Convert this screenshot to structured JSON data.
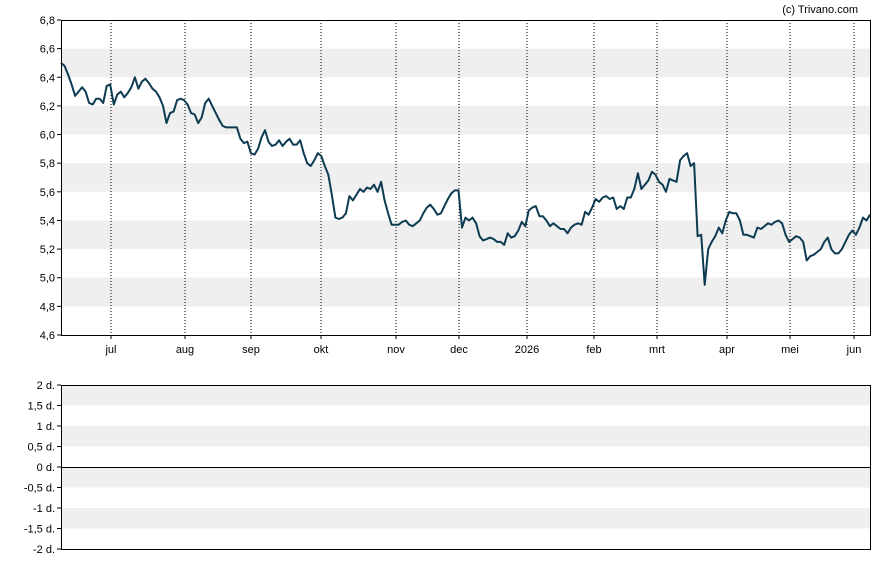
{
  "watermark": "(c) Trivano.com",
  "colors": {
    "line": "#0d3b52",
    "band": "#efefef",
    "axis": "#000000",
    "grid": "#000000"
  },
  "chart_data": [
    {
      "type": "line",
      "title": "",
      "xlabel": "",
      "ylabel": "",
      "ylim": [
        4.6,
        6.8
      ],
      "y_ticks": [
        "4,6",
        "4,8",
        "5,0",
        "5,2",
        "5,4",
        "5,6",
        "5,8",
        "6,0",
        "6,2",
        "6,4",
        "6,6",
        "6,8"
      ],
      "x_ticks": [
        "jul",
        "aug",
        "sep",
        "okt",
        "nov",
        "dec",
        "2026",
        "feb",
        "mrt",
        "apr",
        "mei",
        "jun"
      ],
      "grid": "vertical dotted at month starts, alternating horizontal bands",
      "series": [
        {
          "name": "",
          "x_range": [
            "2025-06-13",
            "2026-06-12"
          ],
          "values": [
            6.5,
            6.48,
            6.42,
            6.35,
            6.27,
            6.3,
            6.33,
            6.3,
            6.22,
            6.21,
            6.25,
            6.25,
            6.22,
            6.34,
            6.35,
            6.21,
            6.28,
            6.3,
            6.26,
            6.29,
            6.33,
            6.4,
            6.32,
            6.37,
            6.39,
            6.36,
            6.32,
            6.3,
            6.26,
            6.2,
            6.08,
            6.15,
            6.16,
            6.24,
            6.25,
            6.24,
            6.21,
            6.15,
            6.14,
            6.08,
            6.12,
            6.22,
            6.25,
            6.2,
            6.15,
            6.1,
            6.06,
            6.05,
            6.05,
            6.05,
            6.05,
            5.97,
            5.94,
            5.95,
            5.87,
            5.86,
            5.9,
            5.98,
            6.03,
            5.95,
            5.92,
            5.93,
            5.96,
            5.92,
            5.95,
            5.97,
            5.93,
            5.93,
            5.96,
            5.87,
            5.8,
            5.78,
            5.82,
            5.87,
            5.85,
            5.78,
            5.72,
            5.58,
            5.42,
            5.41,
            5.42,
            5.45,
            5.57,
            5.54,
            5.58,
            5.62,
            5.6,
            5.63,
            5.62,
            5.65,
            5.6,
            5.67,
            5.54,
            5.45,
            5.37,
            5.37,
            5.37,
            5.39,
            5.4,
            5.37,
            5.36,
            5.38,
            5.4,
            5.45,
            5.49,
            5.51,
            5.48,
            5.44,
            5.45,
            5.5,
            5.55,
            5.59,
            5.61,
            5.61,
            5.35,
            5.42,
            5.4,
            5.42,
            5.38,
            5.29,
            5.26,
            5.27,
            5.28,
            5.27,
            5.25,
            5.25,
            5.23,
            5.31,
            5.28,
            5.29,
            5.33,
            5.39,
            5.36,
            5.47,
            5.49,
            5.5,
            5.43,
            5.43,
            5.4,
            5.36,
            5.38,
            5.36,
            5.34,
            5.34,
            5.31,
            5.35,
            5.37,
            5.38,
            5.37,
            5.46,
            5.44,
            5.49,
            5.55,
            5.53,
            5.56,
            5.57,
            5.55,
            5.56,
            5.48,
            5.5,
            5.48,
            5.56,
            5.56,
            5.62,
            5.73,
            5.62,
            5.65,
            5.68,
            5.74,
            5.72,
            5.67,
            5.65,
            5.6,
            5.69,
            5.68,
            5.67,
            5.82,
            5.85,
            5.87,
            5.78,
            5.8,
            5.29,
            5.3,
            4.95,
            5.2,
            5.25,
            5.29,
            5.35,
            5.31,
            5.4,
            5.46,
            5.45,
            5.45,
            5.4,
            5.3,
            5.3,
            5.29,
            5.28,
            5.35,
            5.34,
            5.36,
            5.38,
            5.37,
            5.39,
            5.4,
            5.38,
            5.3,
            5.25,
            5.27,
            5.29,
            5.28,
            5.25,
            5.12,
            5.15,
            5.16,
            5.18,
            5.2,
            5.25,
            5.28,
            5.2,
            5.17,
            5.17,
            5.2,
            5.25,
            5.3,
            5.33,
            5.3,
            5.35,
            5.42,
            5.4,
            5.44
          ]
        }
      ]
    },
    {
      "type": "line",
      "title": "",
      "xlabel": "",
      "ylabel": "",
      "ylim": [
        -2,
        2
      ],
      "y_ticks": [
        "2 d.",
        "1,5 d.",
        "1 d.",
        "0,5 d.",
        "0 d.",
        "-0,5 d.",
        "-1 d.",
        "-1,5 d.",
        "-2 d."
      ],
      "series": [
        {
          "name": "",
          "values": [
            0
          ]
        }
      ]
    }
  ]
}
